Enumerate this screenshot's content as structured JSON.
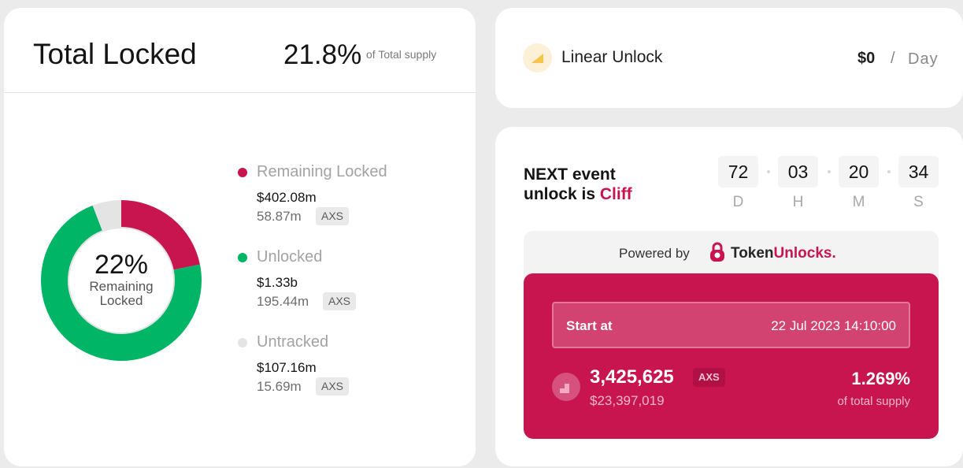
{
  "total_locked": {
    "title": "Total Locked",
    "percent": "21.8%",
    "percent_caption": "of Total supply"
  },
  "donut": {
    "center_value": "22%",
    "center_label_line1": "Remaining",
    "center_label_line2": "Locked",
    "segments": [
      {
        "name": "Remaining Locked",
        "fraction": 0.218,
        "color": "#c8154f"
      },
      {
        "name": "Unlocked",
        "fraction": 0.724,
        "color": "#00b566"
      },
      {
        "name": "Untracked",
        "fraction": 0.058,
        "color": "#e4e4e4"
      }
    ],
    "inner_ring_color": "#e3e3e3"
  },
  "legend": [
    {
      "name": "Remaining Locked",
      "usd": "$402.08m",
      "amount": "58.87m",
      "token": "AXS",
      "color": "#c8154f"
    },
    {
      "name": "Unlocked",
      "usd": "$1.33b",
      "amount": "195.44m",
      "token": "AXS",
      "color": "#00b566"
    },
    {
      "name": "Untracked",
      "usd": "$107.16m",
      "amount": "15.69m",
      "token": "AXS",
      "color": "#e4e4e4"
    }
  ],
  "linear_unlock": {
    "label": "Linear Unlock",
    "value": "$0",
    "separator": "/",
    "unit": "Day",
    "icon": "triangle-ramp-icon"
  },
  "next_event": {
    "line1": "NEXT event",
    "line2_prefix": "unlock is ",
    "type": "Cliff",
    "countdown": [
      {
        "value": "72",
        "unit": "D"
      },
      {
        "value": "03",
        "unit": "H"
      },
      {
        "value": "20",
        "unit": "M"
      },
      {
        "value": "34",
        "unit": "S"
      }
    ]
  },
  "powered_by": {
    "label": "Powered by",
    "brand_part1": "Token",
    "brand_part2": "Unlocks."
  },
  "unlock_detail": {
    "start_label": "Start at",
    "start_date": "22 Jul 2023 14:10:00",
    "amount": "3,425,625",
    "token": "AXS",
    "usd": "$23,397,019",
    "supply_percent": "1.269%",
    "supply_label": "of total supply"
  },
  "colors": {
    "accent": "#c8154f",
    "unlocked": "#00b566",
    "untracked": "#e4e4e4"
  }
}
